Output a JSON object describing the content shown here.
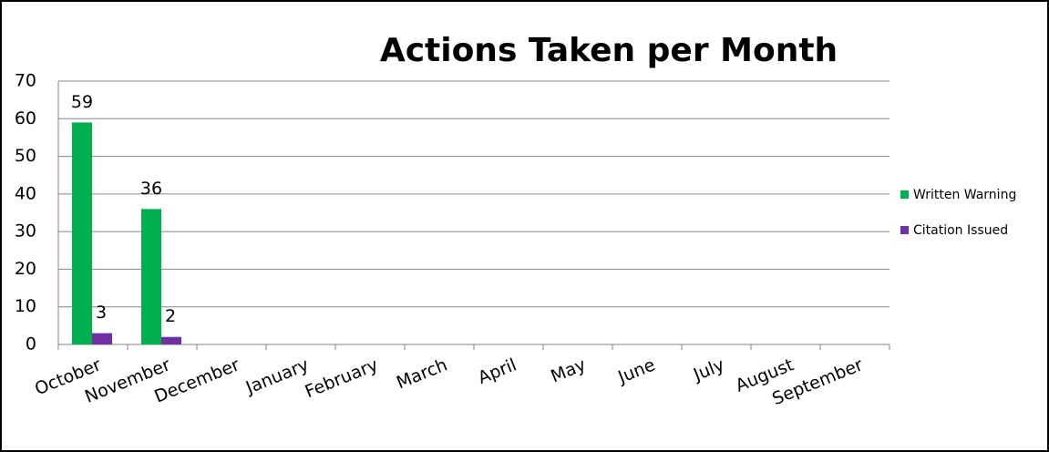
{
  "chart_data": {
    "type": "bar",
    "title": "Actions Taken per Month",
    "categories": [
      "October",
      "November",
      "December",
      "January",
      "February",
      "March",
      "April",
      "May",
      "June",
      "July",
      "August",
      "September"
    ],
    "series": [
      {
        "name": "Written Warning",
        "color": "#00b050",
        "values": [
          59,
          36,
          null,
          null,
          null,
          null,
          null,
          null,
          null,
          null,
          null,
          null
        ]
      },
      {
        "name": "Citation Issued",
        "color": "#7030a0",
        "values": [
          3,
          2,
          null,
          null,
          null,
          null,
          null,
          null,
          null,
          null,
          null,
          null
        ]
      }
    ],
    "ylim": [
      0,
      70
    ],
    "yticks": [
      0,
      10,
      20,
      30,
      40,
      50,
      60,
      70
    ],
    "grid": true,
    "legend": "right",
    "data_labels": true
  }
}
